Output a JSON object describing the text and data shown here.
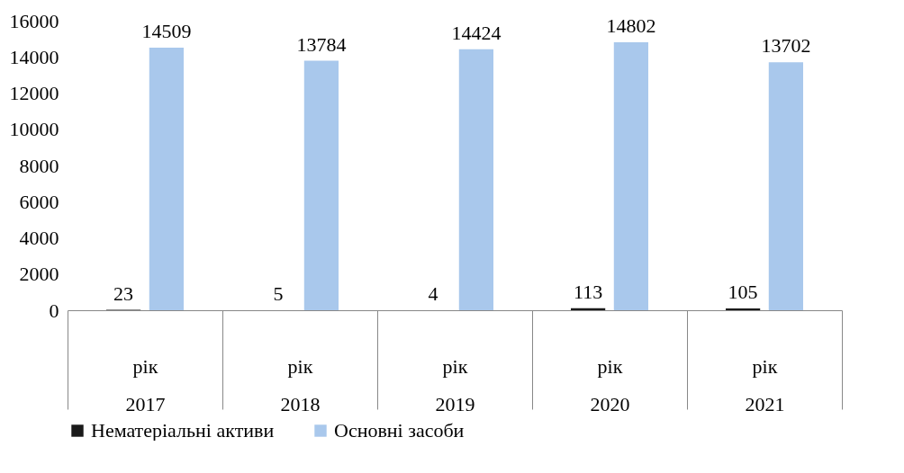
{
  "chart_data": {
    "type": "bar",
    "categories": [
      "рік 2017",
      "рік 2018",
      "рік 2019",
      "рік 2020",
      "рік 2021"
    ],
    "series": [
      {
        "name": "Нематеріальні активи",
        "color": "#1a1a1a",
        "values": [
          23,
          5,
          4,
          113,
          105
        ]
      },
      {
        "name": "Основні засоби",
        "color": "#a9c8ec",
        "values": [
          14509,
          13784,
          14424,
          14802,
          13702
        ]
      }
    ],
    "ylim": [
      0,
      16000
    ],
    "yticks": [
      0,
      2000,
      4000,
      6000,
      8000,
      10000,
      12000,
      14000,
      16000
    ],
    "grid": false,
    "legend": "bottom",
    "data_labels": true
  }
}
